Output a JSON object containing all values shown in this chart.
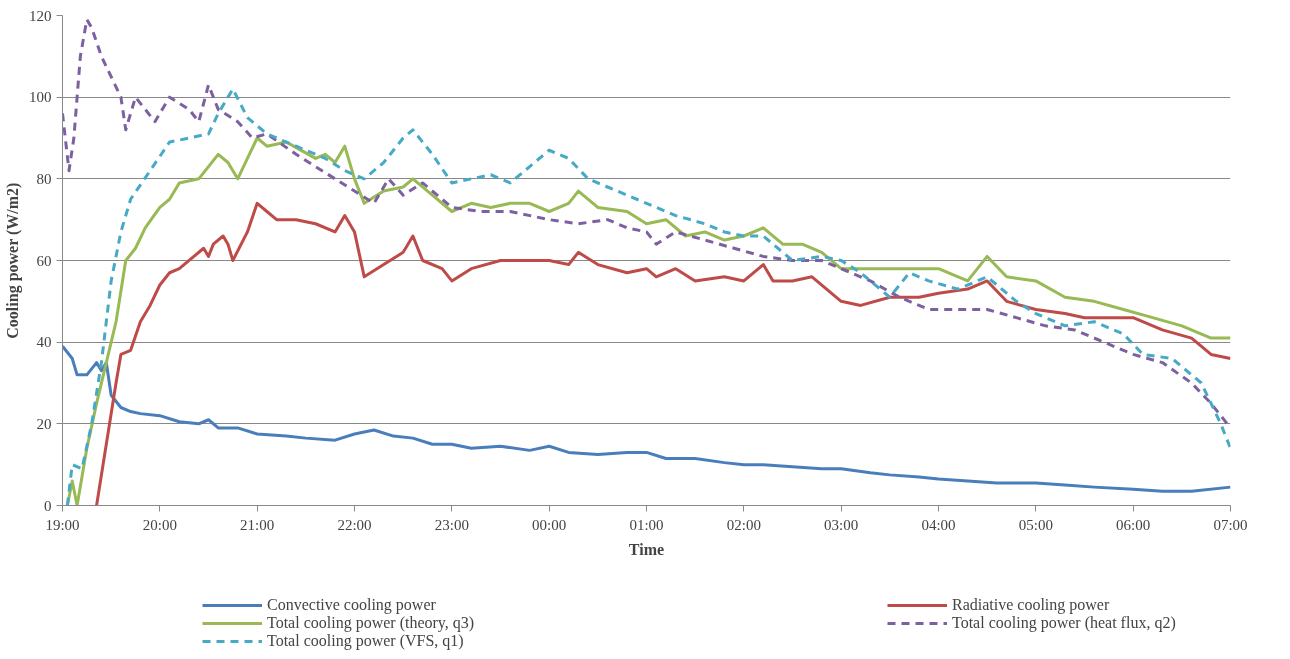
{
  "chart_data": {
    "type": "line",
    "xlabel": "Time",
    "ylabel": "Cooling power (W/m2)",
    "xlim": [
      "2000-01-01T19:00",
      "2000-01-02T07:00"
    ],
    "ylim": [
      0,
      120
    ],
    "xticks": [
      {
        "value": "2000-01-01T19:00",
        "label": "19:00"
      },
      {
        "value": "2000-01-01T20:00",
        "label": "20:00"
      },
      {
        "value": "2000-01-01T21:00",
        "label": "21:00"
      },
      {
        "value": "2000-01-01T22:00",
        "label": "22:00"
      },
      {
        "value": "2000-01-01T23:00",
        "label": "23:00"
      },
      {
        "value": "2000-01-02T00:00",
        "label": "00:00"
      },
      {
        "value": "2000-01-02T01:00",
        "label": "01:00"
      },
      {
        "value": "2000-01-02T02:00",
        "label": "02:00"
      },
      {
        "value": "2000-01-02T03:00",
        "label": "03:00"
      },
      {
        "value": "2000-01-02T04:00",
        "label": "04:00"
      },
      {
        "value": "2000-01-02T05:00",
        "label": "05:00"
      },
      {
        "value": "2000-01-02T06:00",
        "label": "06:00"
      },
      {
        "value": "2000-01-02T07:00",
        "label": "07:00"
      }
    ],
    "yticks": [
      0,
      20,
      40,
      60,
      80,
      100,
      120
    ],
    "grid": "y",
    "legend": "bottom",
    "marker": "none",
    "line_style": "solid",
    "series": [
      {
        "name": "Convective cooling power",
        "color": "#4a7ebb",
        "x": [
          "2000-01-01T19:00",
          "2000-01-01T19:06",
          "2000-01-01T19:09",
          "2000-01-01T19:15",
          "2000-01-01T19:21",
          "2000-01-01T19:24",
          "2000-01-01T19:27",
          "2000-01-01T19:30",
          "2000-01-01T19:36",
          "2000-01-01T19:42",
          "2000-01-01T19:48",
          "2000-01-01T20:00",
          "2000-01-01T20:12",
          "2000-01-01T20:24",
          "2000-01-01T20:30",
          "2000-01-01T20:36",
          "2000-01-01T20:48",
          "2000-01-01T21:00",
          "2000-01-01T21:18",
          "2000-01-01T21:30",
          "2000-01-01T21:48",
          "2000-01-01T22:00",
          "2000-01-01T22:12",
          "2000-01-01T22:24",
          "2000-01-01T22:36",
          "2000-01-01T22:48",
          "2000-01-01T23:00",
          "2000-01-01T23:12",
          "2000-01-01T23:30",
          "2000-01-01T23:48",
          "2000-01-02T00:00",
          "2000-01-02T00:12",
          "2000-01-02T00:30",
          "2000-01-02T00:48",
          "2000-01-02T01:00",
          "2000-01-02T01:12",
          "2000-01-02T01:30",
          "2000-01-02T01:48",
          "2000-01-02T02:00",
          "2000-01-02T02:12",
          "2000-01-02T02:30",
          "2000-01-02T02:48",
          "2000-01-02T03:00",
          "2000-01-02T03:18",
          "2000-01-02T03:30",
          "2000-01-02T03:48",
          "2000-01-02T04:00",
          "2000-01-02T04:18",
          "2000-01-02T04:36",
          "2000-01-02T04:54",
          "2000-01-02T05:00",
          "2000-01-02T05:18",
          "2000-01-02T05:36",
          "2000-01-02T06:00",
          "2000-01-02T06:18",
          "2000-01-02T06:36",
          "2000-01-02T07:00"
        ],
        "values": [
          39,
          36,
          32,
          32,
          35,
          33,
          35,
          27,
          24,
          23,
          22.5,
          22,
          20.5,
          20,
          21,
          19,
          19,
          17.5,
          17,
          16.5,
          16,
          17.5,
          18.5,
          17,
          16.5,
          15,
          15,
          14,
          14.5,
          13.5,
          14.5,
          13,
          12.5,
          13,
          13,
          11.5,
          11.5,
          10.5,
          10,
          10,
          9.5,
          9,
          9,
          8,
          7.5,
          7,
          6.5,
          6,
          5.5,
          5.5,
          5.5,
          5,
          4.5,
          4,
          3.5,
          3.5,
          4.5
        ]
      },
      {
        "name": "Radiative cooling power",
        "color": "#be4b48",
        "x": [
          "2000-01-01T19:21",
          "2000-01-01T19:27",
          "2000-01-01T19:33",
          "2000-01-01T19:36",
          "2000-01-01T19:42",
          "2000-01-01T19:48",
          "2000-01-01T19:54",
          "2000-01-01T20:00",
          "2000-01-01T20:06",
          "2000-01-01T20:12",
          "2000-01-01T20:21",
          "2000-01-01T20:27",
          "2000-01-01T20:30",
          "2000-01-01T20:33",
          "2000-01-01T20:39",
          "2000-01-01T20:42",
          "2000-01-01T20:45",
          "2000-01-01T20:54",
          "2000-01-01T21:00",
          "2000-01-01T21:06",
          "2000-01-01T21:12",
          "2000-01-01T21:24",
          "2000-01-01T21:36",
          "2000-01-01T21:48",
          "2000-01-01T21:54",
          "2000-01-01T22:00",
          "2000-01-01T22:06",
          "2000-01-01T22:18",
          "2000-01-01T22:30",
          "2000-01-01T22:36",
          "2000-01-01T22:42",
          "2000-01-01T22:54",
          "2000-01-01T23:00",
          "2000-01-01T23:12",
          "2000-01-01T23:30",
          "2000-01-01T23:48",
          "2000-01-02T00:00",
          "2000-01-02T00:12",
          "2000-01-02T00:18",
          "2000-01-02T00:30",
          "2000-01-02T00:48",
          "2000-01-02T01:00",
          "2000-01-02T01:06",
          "2000-01-02T01:18",
          "2000-01-02T01:30",
          "2000-01-02T01:48",
          "2000-01-02T02:00",
          "2000-01-02T02:12",
          "2000-01-02T02:18",
          "2000-01-02T02:30",
          "2000-01-02T02:42",
          "2000-01-02T03:00",
          "2000-01-02T03:12",
          "2000-01-02T03:30",
          "2000-01-02T03:48",
          "2000-01-02T04:00",
          "2000-01-02T04:18",
          "2000-01-02T04:30",
          "2000-01-02T04:42",
          "2000-01-02T05:00",
          "2000-01-02T05:18",
          "2000-01-02T05:30",
          "2000-01-02T05:48",
          "2000-01-02T06:00",
          "2000-01-02T06:18",
          "2000-01-02T06:36",
          "2000-01-02T06:48",
          "2000-01-02T07:00"
        ],
        "values": [
          0,
          15,
          30,
          37,
          38,
          45,
          49,
          54,
          57,
          58,
          61,
          63,
          61,
          64,
          66,
          64,
          60,
          67,
          74,
          72,
          70,
          70,
          69,
          67,
          71,
          67,
          56,
          59,
          62,
          66,
          60,
          58,
          55,
          58,
          60,
          60,
          60,
          59,
          62,
          59,
          57,
          58,
          56,
          58,
          55,
          56,
          55,
          59,
          55,
          55,
          56,
          50,
          49,
          51,
          51,
          52,
          53,
          55,
          50,
          48,
          47,
          46,
          46,
          46,
          43,
          41,
          37,
          36
        ]
      },
      {
        "name": "Total cooling power (theory, q3)",
        "color": "#98b954",
        "x": [
          "2000-01-01T19:03",
          "2000-01-01T19:06",
          "2000-01-01T19:09",
          "2000-01-01T19:15",
          "2000-01-01T19:21",
          "2000-01-01T19:27",
          "2000-01-01T19:33",
          "2000-01-01T19:39",
          "2000-01-01T19:45",
          "2000-01-01T19:51",
          "2000-01-01T20:00",
          "2000-01-01T20:06",
          "2000-01-01T20:12",
          "2000-01-01T20:24",
          "2000-01-01T20:36",
          "2000-01-01T20:42",
          "2000-01-01T20:48",
          "2000-01-01T20:54",
          "2000-01-01T21:00",
          "2000-01-01T21:06",
          "2000-01-01T21:18",
          "2000-01-01T21:36",
          "2000-01-01T21:42",
          "2000-01-01T21:48",
          "2000-01-01T21:54",
          "2000-01-01T22:00",
          "2000-01-01T22:06",
          "2000-01-01T22:18",
          "2000-01-01T22:30",
          "2000-01-01T22:36",
          "2000-01-01T22:48",
          "2000-01-01T23:00",
          "2000-01-01T23:12",
          "2000-01-01T23:24",
          "2000-01-01T23:36",
          "2000-01-01T23:48",
          "2000-01-02T00:00",
          "2000-01-02T00:12",
          "2000-01-02T00:18",
          "2000-01-02T00:30",
          "2000-01-02T00:48",
          "2000-01-02T01:00",
          "2000-01-02T01:12",
          "2000-01-02T01:24",
          "2000-01-02T01:36",
          "2000-01-02T01:48",
          "2000-01-02T02:00",
          "2000-01-02T02:12",
          "2000-01-02T02:24",
          "2000-01-02T02:36",
          "2000-01-02T02:48",
          "2000-01-02T03:00",
          "2000-01-02T03:18",
          "2000-01-02T03:30",
          "2000-01-02T03:48",
          "2000-01-02T04:00",
          "2000-01-02T04:18",
          "2000-01-02T04:30",
          "2000-01-02T04:42",
          "2000-01-02T05:00",
          "2000-01-02T05:18",
          "2000-01-02T05:36",
          "2000-01-02T05:54",
          "2000-01-02T06:12",
          "2000-01-02T06:30",
          "2000-01-02T06:48",
          "2000-01-02T07:00"
        ],
        "values": [
          0,
          6,
          0,
          14,
          25,
          35,
          45,
          60,
          63,
          68,
          73,
          75,
          79,
          80,
          86,
          84,
          80,
          85,
          90,
          88,
          89,
          85,
          86,
          84,
          88,
          80,
          74,
          77,
          78,
          80,
          76,
          72,
          74,
          73,
          74,
          74,
          72,
          74,
          77,
          73,
          72,
          69,
          70,
          66,
          67,
          65,
          66,
          68,
          64,
          64,
          62,
          58,
          58,
          58,
          58,
          58,
          55,
          61,
          56,
          55,
          51,
          50,
          48,
          46,
          44,
          41,
          41
        ]
      },
      {
        "name": "Total cooling power (heat flux, q2)",
        "color": "#7d60a0",
        "line_style": "dashed",
        "x": [
          "2000-01-01T19:00",
          "2000-01-01T19:04",
          "2000-01-01T19:07",
          "2000-01-01T19:11",
          "2000-01-01T19:15",
          "2000-01-01T19:18",
          "2000-01-01T19:24",
          "2000-01-01T19:30",
          "2000-01-01T19:36",
          "2000-01-01T19:39",
          "2000-01-01T19:45",
          "2000-01-01T19:51",
          "2000-01-01T19:57",
          "2000-01-01T20:06",
          "2000-01-01T20:18",
          "2000-01-01T20:24",
          "2000-01-01T20:30",
          "2000-01-01T20:36",
          "2000-01-01T20:48",
          "2000-01-01T20:57",
          "2000-01-01T21:06",
          "2000-01-01T21:24",
          "2000-01-01T21:36",
          "2000-01-01T21:48",
          "2000-01-01T22:00",
          "2000-01-01T22:12",
          "2000-01-01T22:21",
          "2000-01-01T22:30",
          "2000-01-01T22:42",
          "2000-01-01T22:54",
          "2000-01-01T23:00",
          "2000-01-01T23:18",
          "2000-01-01T23:36",
          "2000-01-02T00:00",
          "2000-01-02T00:18",
          "2000-01-02T00:36",
          "2000-01-02T00:48",
          "2000-01-02T01:00",
          "2000-01-02T01:06",
          "2000-01-02T01:18",
          "2000-01-02T01:36",
          "2000-01-02T01:54",
          "2000-01-02T02:12",
          "2000-01-02T02:30",
          "2000-01-02T02:48",
          "2000-01-02T03:00",
          "2000-01-02T03:18",
          "2000-01-02T03:36",
          "2000-01-02T03:54",
          "2000-01-02T04:12",
          "2000-01-02T04:30",
          "2000-01-02T04:48",
          "2000-01-02T05:06",
          "2000-01-02T05:24",
          "2000-01-02T05:42",
          "2000-01-02T06:00",
          "2000-01-02T06:18",
          "2000-01-02T06:36",
          "2000-01-02T06:48",
          "2000-01-02T07:00"
        ],
        "values": [
          96,
          82,
          90,
          110,
          119,
          117,
          110,
          105,
          100,
          92,
          100,
          97,
          94,
          100,
          97,
          94,
          103,
          97,
          94,
          90,
          91,
          86,
          83,
          80,
          77,
          74,
          80,
          76,
          79,
          75,
          73,
          72,
          72,
          70,
          69,
          70,
          68,
          67,
          64,
          67,
          65,
          63,
          61,
          60,
          60,
          58,
          55,
          51,
          48,
          48,
          48,
          46,
          44,
          43,
          40,
          37,
          35,
          30,
          25,
          19
        ]
      },
      {
        "name": "Total cooling power (VFS, q1)",
        "color": "#46aac5",
        "line_style": "dashed",
        "x": [
          "2000-01-01T19:03",
          "2000-01-01T19:06",
          "2000-01-01T19:12",
          "2000-01-01T19:18",
          "2000-01-01T19:24",
          "2000-01-01T19:30",
          "2000-01-01T19:36",
          "2000-01-01T19:42",
          "2000-01-01T19:54",
          "2000-01-01T20:06",
          "2000-01-01T20:18",
          "2000-01-01T20:30",
          "2000-01-01T20:36",
          "2000-01-01T20:45",
          "2000-01-01T20:54",
          "2000-01-01T21:06",
          "2000-01-01T21:24",
          "2000-01-01T21:42",
          "2000-01-01T21:54",
          "2000-01-01T22:06",
          "2000-01-01T22:18",
          "2000-01-01T22:30",
          "2000-01-01T22:36",
          "2000-01-01T22:48",
          "2000-01-01T23:00",
          "2000-01-01T23:12",
          "2000-01-01T23:24",
          "2000-01-01T23:36",
          "2000-01-01T23:48",
          "2000-01-02T00:00",
          "2000-01-02T00:12",
          "2000-01-02T00:24",
          "2000-01-02T00:36",
          "2000-01-02T00:48",
          "2000-01-02T01:00",
          "2000-01-02T01:18",
          "2000-01-02T01:36",
          "2000-01-02T01:48",
          "2000-01-02T02:00",
          "2000-01-02T02:12",
          "2000-01-02T02:30",
          "2000-01-02T02:48",
          "2000-01-02T03:00",
          "2000-01-02T03:12",
          "2000-01-02T03:30",
          "2000-01-02T03:42",
          "2000-01-02T03:54",
          "2000-01-02T04:12",
          "2000-01-02T04:30",
          "2000-01-02T04:48",
          "2000-01-02T05:00",
          "2000-01-02T05:18",
          "2000-01-02T05:36",
          "2000-01-02T05:54",
          "2000-01-02T06:06",
          "2000-01-02T06:24",
          "2000-01-02T06:42",
          "2000-01-02T06:54",
          "2000-01-02T07:00"
        ],
        "values": [
          0,
          10,
          9,
          20,
          35,
          55,
          67,
          75,
          82,
          89,
          90,
          91,
          96,
          102,
          95,
          91,
          88,
          85,
          82,
          80,
          84,
          90,
          92,
          86,
          79,
          80,
          81,
          79,
          83,
          87,
          85,
          80,
          78,
          76,
          74,
          71,
          69,
          67,
          66,
          66,
          60,
          61,
          60,
          57,
          51,
          57,
          55,
          53,
          56,
          50,
          47,
          44,
          45,
          42,
          37,
          36,
          30,
          20,
          14
        ]
      }
    ]
  }
}
